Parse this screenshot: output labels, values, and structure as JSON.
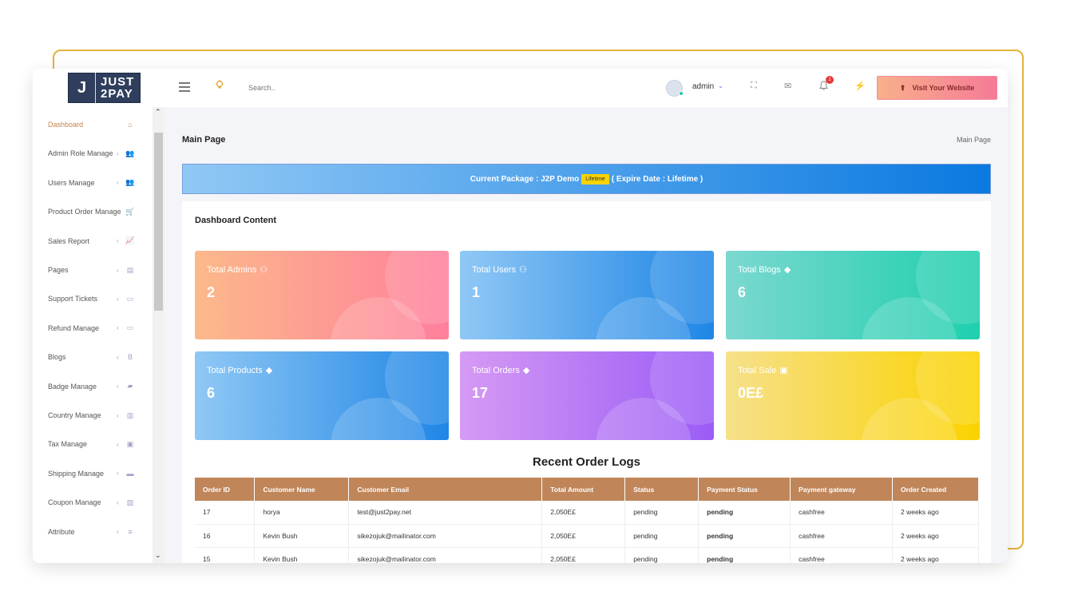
{
  "brand": {
    "logo_mark": "J",
    "logo_line1": "JUST",
    "logo_line2": "2PAY"
  },
  "topbar": {
    "search_placeholder": "Search..",
    "user_name": "admin",
    "notification_count": "1",
    "visit_label": "Visit Your Website"
  },
  "sidebar": {
    "items": [
      {
        "label": "Dashboard",
        "icon": "home-icon",
        "glyph": "⌂",
        "active": true
      },
      {
        "label": "Admin Role Manage",
        "icon": "users-icon",
        "glyph": "👥"
      },
      {
        "label": "Users Manage",
        "icon": "users-icon",
        "glyph": "👥"
      },
      {
        "label": "Product Order Manage",
        "icon": "cart-icon",
        "glyph": "🛒"
      },
      {
        "label": "Sales Report",
        "icon": "chart-icon",
        "glyph": "📈"
      },
      {
        "label": "Pages",
        "icon": "file-icon",
        "glyph": "▤"
      },
      {
        "label": "Support Tickets",
        "icon": "folder-icon",
        "glyph": "▭"
      },
      {
        "label": "Refund Manage",
        "icon": "folder-icon",
        "glyph": "▭"
      },
      {
        "label": "Blogs",
        "icon": "blog-icon",
        "glyph": "B"
      },
      {
        "label": "Badge Manage",
        "icon": "tag-icon",
        "glyph": "▰"
      },
      {
        "label": "Country Manage",
        "icon": "map-icon",
        "glyph": "▥"
      },
      {
        "label": "Tax Manage",
        "icon": "money-icon",
        "glyph": "▣"
      },
      {
        "label": "Shipping Manage",
        "icon": "truck-icon",
        "glyph": "▬"
      },
      {
        "label": "Coupon Manage",
        "icon": "coupon-icon",
        "glyph": "▧"
      },
      {
        "label": "Attribute",
        "icon": "list-icon",
        "glyph": "≡"
      }
    ]
  },
  "main": {
    "title": "Main Page",
    "breadcrumb": "Main Page",
    "package": {
      "prefix": "Current Package : J2P Demo",
      "badge": "Lifetime",
      "suffix": "( Expire Date : Lifetime )"
    },
    "dashboard_title": "Dashboard Content",
    "cards": [
      {
        "title": "Total Admins",
        "value": "2",
        "icon": "users-icon",
        "glyph": "⚇",
        "from": "#fcb98a",
        "to": "#ff7f9c"
      },
      {
        "title": "Total Users",
        "value": "1",
        "icon": "users-icon",
        "glyph": "⚇",
        "from": "#90c8f5",
        "to": "#1f86e6"
      },
      {
        "title": "Total Blogs",
        "value": "6",
        "icon": "diamond-icon",
        "glyph": "◆",
        "from": "#7cd8d1",
        "to": "#1ecfae"
      },
      {
        "title": "Total Products",
        "value": "6",
        "icon": "diamond-icon",
        "glyph": "◆",
        "from": "#90c8f5",
        "to": "#1f86e6"
      },
      {
        "title": "Total Orders",
        "value": "17",
        "icon": "diamond-icon",
        "glyph": "◆",
        "from": "#d59af4",
        "to": "#9b5cf6"
      },
      {
        "title": "Total Sale",
        "value": "0E£",
        "icon": "money-icon",
        "glyph": "▣",
        "from": "#f6e08a",
        "to": "#fbd300"
      }
    ],
    "orders_title": "Recent Order Logs",
    "table": {
      "headers": [
        "Order ID",
        "Customer Name",
        "Customer Email",
        "Total Amount",
        "Status",
        "Payment Status",
        "Payment gateway",
        "Order Created"
      ],
      "rows": [
        [
          "17",
          "horya",
          "test@just2pay.net",
          "2,050E£",
          "pending",
          "pending",
          "cashfree",
          "2 weeks ago"
        ],
        [
          "16",
          "Kevin Bush",
          "sikezojuk@mailinator.com",
          "2,050E£",
          "pending",
          "pending",
          "cashfree",
          "2 weeks ago"
        ],
        [
          "15",
          "Kevin Bush",
          "sikezojuk@mailinator.com",
          "2,050E£",
          "pending",
          "pending",
          "cashfree",
          "2 weeks ago"
        ]
      ]
    }
  },
  "colors": {
    "accent": "#c5834a",
    "table_header": "#c0865a",
    "payment_pending": "#f2b600"
  }
}
